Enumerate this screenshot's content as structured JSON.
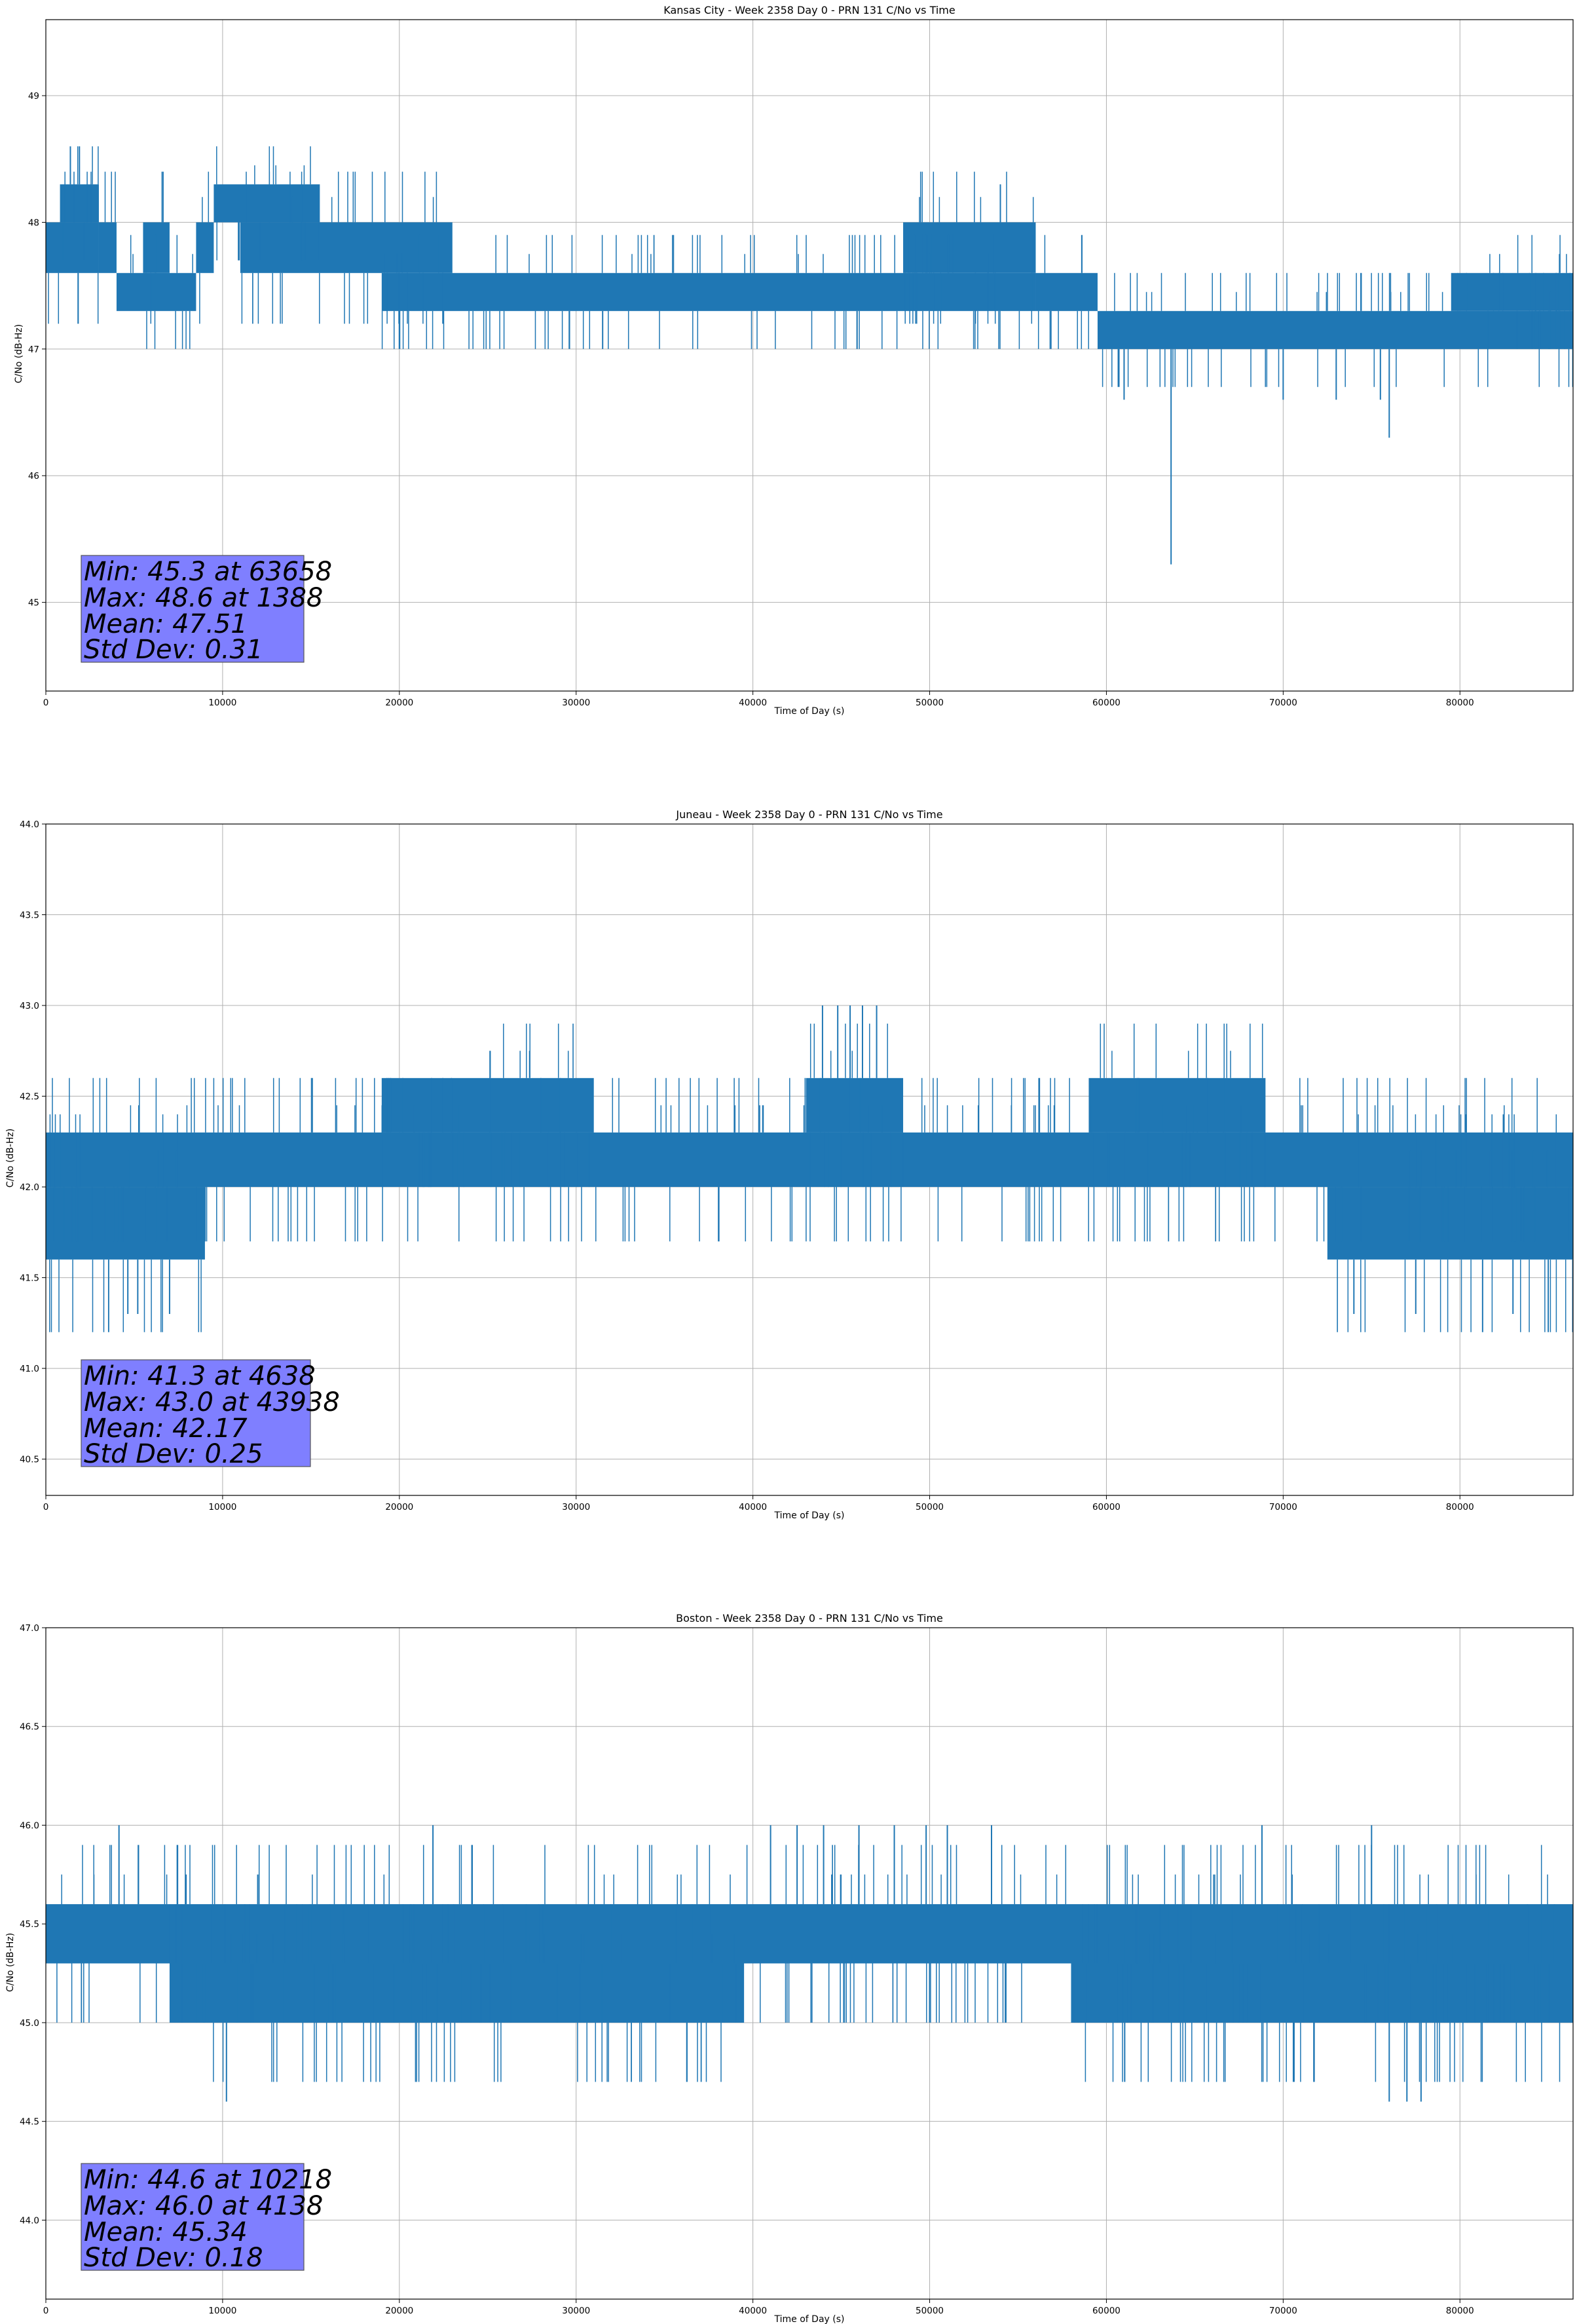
{
  "chart_data": [
    {
      "type": "line",
      "title": "Kansas City - Week 2358 Day 0 - PRN 131 C/No vs Time",
      "xlabel": "Time of Day (s)",
      "ylabel": "C/No (dB-Hz)",
      "xlim": [
        0,
        86400
      ],
      "ylim": [
        44.3,
        49.6
      ],
      "x_ticks": [
        0,
        10000,
        20000,
        30000,
        40000,
        50000,
        60000,
        70000,
        80000
      ],
      "y_ticks": [
        45,
        46,
        47,
        48,
        49
      ],
      "y_tick_labels": [
        "45",
        "46",
        "47",
        "48",
        "49"
      ],
      "grid": true,
      "color": "#1f77b4",
      "stats": [
        "Min: 45.3 at 63658",
        "Max: 48.6 at 1388",
        "Mean: 47.51",
        "Std Dev: 0.31"
      ],
      "series": [
        {
          "name": "C/No",
          "segments": [
            {
              "x0": 0,
              "x1": 3000,
              "low": 47.6,
              "high": 48.0
            },
            {
              "x0": 800,
              "x1": 3000,
              "low": 48.0,
              "high": 48.3
            },
            {
              "x0": 3000,
              "x1": 4000,
              "low": 47.6,
              "high": 48.0
            },
            {
              "x0": 4000,
              "x1": 8500,
              "low": 47.3,
              "high": 47.6
            },
            {
              "x0": 5500,
              "x1": 7000,
              "low": 47.6,
              "high": 48.0
            },
            {
              "x0": 8500,
              "x1": 9500,
              "low": 47.6,
              "high": 48.0
            },
            {
              "x0": 9500,
              "x1": 15500,
              "low": 48.0,
              "high": 48.3
            },
            {
              "x0": 11000,
              "x1": 23000,
              "low": 47.6,
              "high": 48.0
            },
            {
              "x0": 19000,
              "x1": 56000,
              "low": 47.3,
              "high": 47.6
            },
            {
              "x0": 48500,
              "x1": 56000,
              "low": 47.6,
              "high": 48.0
            },
            {
              "x0": 56000,
              "x1": 59500,
              "low": 47.3,
              "high": 47.6
            },
            {
              "x0": 59500,
              "x1": 86400,
              "low": 47.0,
              "high": 47.3
            },
            {
              "x0": 79500,
              "x1": 86400,
              "low": 47.3,
              "high": 47.6
            }
          ],
          "spikes": [
            {
              "x": 1388,
              "low": 48.3,
              "high": 48.6
            },
            {
              "x": 1900,
              "low": 48.3,
              "high": 48.6
            },
            {
              "x": 54000,
              "low": 48.0,
              "high": 48.3
            },
            {
              "x": 63658,
              "low": 45.3,
              "high": 47.0
            },
            {
              "x": 61000,
              "low": 46.6,
              "high": 47.0
            },
            {
              "x": 31500,
              "low": 47.0,
              "high": 47.3
            },
            {
              "x": 76000,
              "low": 46.3,
              "high": 47.0
            },
            {
              "x": 70000,
              "low": 46.6,
              "high": 47.0
            },
            {
              "x": 73000,
              "low": 46.6,
              "high": 47.0
            },
            {
              "x": 75500,
              "low": 46.6,
              "high": 47.0
            }
          ],
          "seed": 7
        }
      ]
    },
    {
      "type": "line",
      "title": "Juneau - Week 2358 Day 0 - PRN 131 C/No vs Time",
      "xlabel": "Time of Day (s)",
      "ylabel": "C/No (dB-Hz)",
      "xlim": [
        0,
        86400
      ],
      "ylim": [
        40.3,
        44.0
      ],
      "x_ticks": [
        0,
        10000,
        20000,
        30000,
        40000,
        50000,
        60000,
        70000,
        80000
      ],
      "y_ticks": [
        40.5,
        41.0,
        41.5,
        42.0,
        42.5,
        43.0,
        43.5,
        44.0
      ],
      "y_tick_labels": [
        "40.5",
        "41.0",
        "41.5",
        "42.0",
        "42.5",
        "43.0",
        "43.5",
        "44.0"
      ],
      "grid": true,
      "color": "#1f77b4",
      "stats": [
        "Min: 41.3 at 4638",
        "Max: 43.0 at 43938",
        "Mean: 42.17",
        "Std Dev: 0.25"
      ],
      "series": [
        {
          "name": "C/No",
          "segments": [
            {
              "x0": 0,
              "x1": 86400,
              "low": 42.0,
              "high": 42.3
            },
            {
              "x0": 0,
              "x1": 9000,
              "low": 41.6,
              "high": 42.0
            },
            {
              "x0": 19000,
              "x1": 31000,
              "low": 42.3,
              "high": 42.6
            },
            {
              "x0": 43000,
              "x1": 48500,
              "low": 42.3,
              "high": 42.6
            },
            {
              "x0": 59000,
              "x1": 69000,
              "low": 42.3,
              "high": 42.6
            },
            {
              "x0": 72500,
              "x1": 86400,
              "low": 41.6,
              "high": 42.0
            }
          ],
          "spikes": [
            {
              "x": 4638,
              "low": 41.3,
              "high": 41.6
            },
            {
              "x": 5200,
              "low": 41.3,
              "high": 41.6
            },
            {
              "x": 7000,
              "low": 41.3,
              "high": 41.6
            },
            {
              "x": 43938,
              "low": 42.6,
              "high": 43.0
            },
            {
              "x": 44800,
              "low": 42.6,
              "high": 43.0
            },
            {
              "x": 45500,
              "low": 42.6,
              "high": 43.0
            },
            {
              "x": 46200,
              "low": 42.6,
              "high": 43.0
            },
            {
              "x": 47000,
              "low": 42.6,
              "high": 43.0
            },
            {
              "x": 74000,
              "low": 41.3,
              "high": 41.6
            },
            {
              "x": 77500,
              "low": 41.3,
              "high": 41.6
            },
            {
              "x": 83000,
              "low": 41.3,
              "high": 41.6
            }
          ],
          "seed": 13
        }
      ]
    },
    {
      "type": "line",
      "title": "Boston - Week 2358 Day 0 - PRN 131 C/No vs Time",
      "xlabel": "Time of Day (s)",
      "ylabel": "C/No (dB-Hz)",
      "xlim": [
        0,
        86400
      ],
      "ylim": [
        43.6,
        47.0
      ],
      "x_ticks": [
        0,
        10000,
        20000,
        30000,
        40000,
        50000,
        60000,
        70000,
        80000
      ],
      "y_ticks": [
        44.0,
        44.5,
        45.0,
        45.5,
        46.0,
        46.5,
        47.0
      ],
      "y_tick_labels": [
        "44.0",
        "44.5",
        "45.0",
        "45.5",
        "46.0",
        "46.5",
        "47.0"
      ],
      "grid": true,
      "color": "#1f77b4",
      "stats": [
        "Min: 44.6 at 10218",
        "Max: 46.0 at 4138",
        "Mean: 45.34",
        "Std Dev: 0.18"
      ],
      "series": [
        {
          "name": "C/No",
          "segments": [
            {
              "x0": 0,
              "x1": 86400,
              "low": 45.3,
              "high": 45.6
            },
            {
              "x0": 7000,
              "x1": 39500,
              "low": 45.0,
              "high": 45.3
            },
            {
              "x0": 58000,
              "x1": 86400,
              "low": 45.0,
              "high": 45.3
            }
          ],
          "spikes": [
            {
              "x": 4138,
              "low": 45.6,
              "high": 46.0
            },
            {
              "x": 10218,
              "low": 44.6,
              "high": 45.0
            },
            {
              "x": 21900,
              "low": 45.6,
              "high": 46.0
            },
            {
              "x": 41000,
              "low": 45.6,
              "high": 46.0
            },
            {
              "x": 42500,
              "low": 45.6,
              "high": 46.0
            },
            {
              "x": 44000,
              "low": 45.6,
              "high": 46.0
            },
            {
              "x": 46000,
              "low": 45.6,
              "high": 46.0
            },
            {
              "x": 48000,
              "low": 45.6,
              "high": 46.0
            },
            {
              "x": 49800,
              "low": 45.6,
              "high": 46.0
            },
            {
              "x": 51000,
              "low": 45.6,
              "high": 46.0
            },
            {
              "x": 53500,
              "low": 45.6,
              "high": 46.0
            },
            {
              "x": 68800,
              "low": 45.6,
              "high": 46.0
            },
            {
              "x": 75000,
              "low": 45.6,
              "high": 46.0
            },
            {
              "x": 76000,
              "low": 44.6,
              "high": 45.0
            },
            {
              "x": 77000,
              "low": 44.6,
              "high": 45.0
            },
            {
              "x": 77800,
              "low": 44.6,
              "high": 45.0
            }
          ],
          "seed": 29
        }
      ]
    }
  ]
}
